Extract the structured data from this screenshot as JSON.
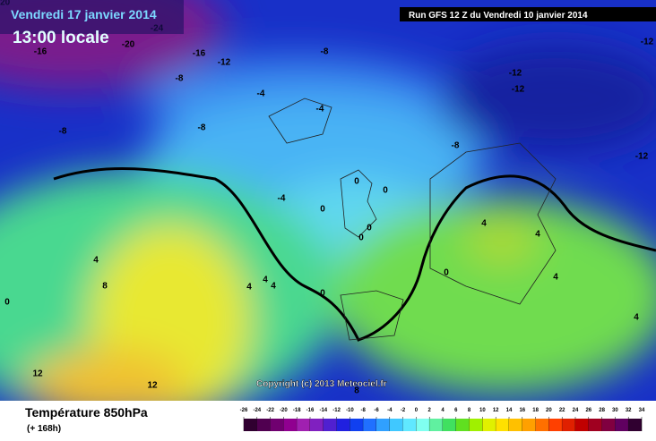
{
  "header": {
    "date": "Vendredi 17 janvier 2014",
    "time": "13:00 locale",
    "run": "Run GFS 12 Z du Vendredi 10 janvier 2014"
  },
  "copyright": "Copyright (c) 2013 Meteociel.fr",
  "legend": {
    "title": "Température 850hPa",
    "subtitle": "(+ 168h)",
    "ticks": [
      -26,
      -24,
      -22,
      -20,
      -18,
      -16,
      -14,
      -12,
      -10,
      -8,
      -6,
      -4,
      -2,
      0,
      2,
      4,
      6,
      8,
      10,
      12,
      14,
      16,
      18,
      20,
      22,
      24,
      26,
      28,
      30,
      32,
      34
    ]
  },
  "contour_labels": [
    "-20",
    "-24",
    "-20",
    "-16",
    "-16",
    "-12",
    "-8",
    "-8",
    "-12",
    "-12",
    "-12",
    "-4",
    "-4",
    "-8",
    "-8",
    "-8",
    "-12",
    "-4",
    "0",
    "0",
    "0",
    "0",
    "0",
    "4",
    "4",
    "4",
    "8",
    "4",
    "4",
    "4",
    "0",
    "0",
    "4",
    "4",
    "12",
    "12",
    "8",
    "0"
  ]
}
